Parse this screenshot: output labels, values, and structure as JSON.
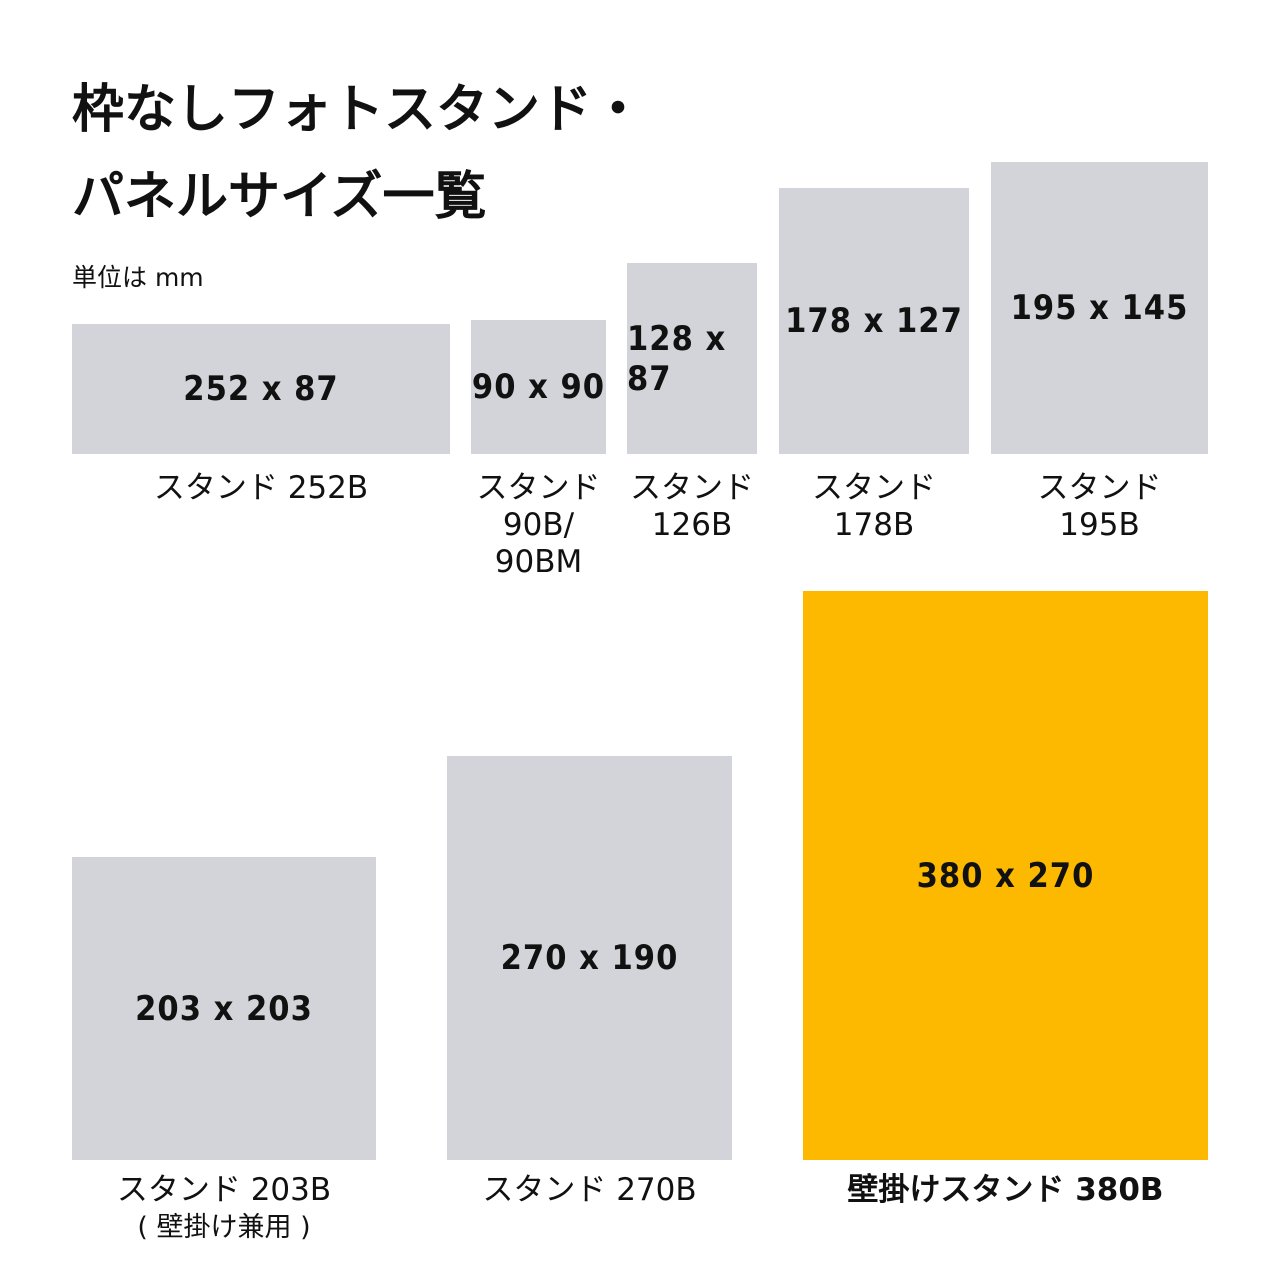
{
  "header": {
    "title": [
      "枠なしフォトスタンド・",
      "パネルサイズ一覧"
    ],
    "unit_note": "単位は mm"
  },
  "items": [
    {
      "size": "252 x 87",
      "name": [
        "スタンド 252B"
      ]
    },
    {
      "size": "90 x 90",
      "name": [
        "スタンド",
        "90B/",
        "90BM"
      ]
    },
    {
      "size": "128 x 87",
      "name": [
        "スタンド",
        "126B"
      ]
    },
    {
      "size": "178 x 127",
      "name": [
        "スタンド",
        "178B"
      ]
    },
    {
      "size": "195 x 145",
      "name": [
        "スタンド",
        "195B"
      ]
    },
    {
      "size": "203 x 203",
      "name": [
        "スタンド 203B",
        "( 壁掛け兼用 )"
      ]
    },
    {
      "size": "270 x 190",
      "name": [
        "スタンド 270B"
      ]
    },
    {
      "size": "380 x 270",
      "name": [
        "壁掛けスタンド 380B"
      ]
    }
  ]
}
